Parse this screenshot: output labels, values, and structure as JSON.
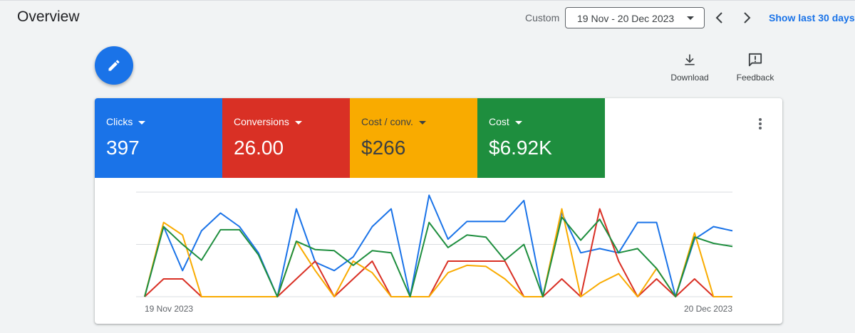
{
  "header": {
    "title": "Overview",
    "date_range_label": "Custom",
    "date_range_value": "19 Nov - 20 Dec 2023",
    "show_last_label": "Show last 30 days"
  },
  "toolbar": {
    "download_label": "Download",
    "feedback_label": "Feedback"
  },
  "metrics": [
    {
      "label": "Clicks",
      "value": "397",
      "color": "#1a73e8"
    },
    {
      "label": "Conversions",
      "value": "26.00",
      "color": "#d93025"
    },
    {
      "label": "Cost / conv.",
      "value": "$266",
      "color": "#f9ab00"
    },
    {
      "label": "Cost",
      "value": "$6.92K",
      "color": "#1e8e3e"
    }
  ],
  "chart_data": {
    "type": "line",
    "x_start_label": "19 Nov 2023",
    "x_end_label": "20 Dec 2023",
    "grid": true,
    "series": [
      {
        "color": "#1a73e8",
        "values": [
          0,
          0.67,
          0.25,
          0.63,
          0.8,
          0.67,
          0.42,
          0,
          0.84,
          0.33,
          0.25,
          0.38,
          0.67,
          0.84,
          0,
          0.97,
          0.55,
          0.72,
          0.72,
          0.72,
          0.92,
          0,
          0.8,
          0.42,
          0.46,
          0.42,
          0.71,
          0.71,
          0,
          0.55,
          0.67,
          0.63
        ]
      },
      {
        "color": "#d93025",
        "values": [
          0,
          0.17,
          0.17,
          0,
          0,
          0,
          0,
          0,
          0.17,
          0.34,
          0,
          0.17,
          0.34,
          0,
          0,
          0,
          0.34,
          0.34,
          0.34,
          0.34,
          0,
          0,
          0.17,
          0,
          0.84,
          0.34,
          0,
          0.17,
          0,
          0.17,
          0,
          0
        ]
      },
      {
        "color": "#f9ab00",
        "values": [
          0,
          0.71,
          0.59,
          0,
          0,
          0,
          0,
          0,
          0.53,
          0.25,
          0,
          0.34,
          0.23,
          0,
          0,
          0,
          0.23,
          0.3,
          0.29,
          0.17,
          0,
          0,
          0.84,
          0,
          0.13,
          0.22,
          0,
          0.27,
          0,
          0.61,
          0,
          0
        ]
      },
      {
        "color": "#1e8e3e",
        "values": [
          0,
          0.67,
          0.5,
          0.35,
          0.64,
          0.64,
          0.4,
          0,
          0.53,
          0.45,
          0.44,
          0.3,
          0.44,
          0.42,
          0,
          0.71,
          0.47,
          0.59,
          0.57,
          0.35,
          0.5,
          0,
          0.76,
          0.54,
          0.74,
          0.42,
          0.46,
          0.27,
          0,
          0.57,
          0.51,
          0.48
        ]
      }
    ]
  }
}
